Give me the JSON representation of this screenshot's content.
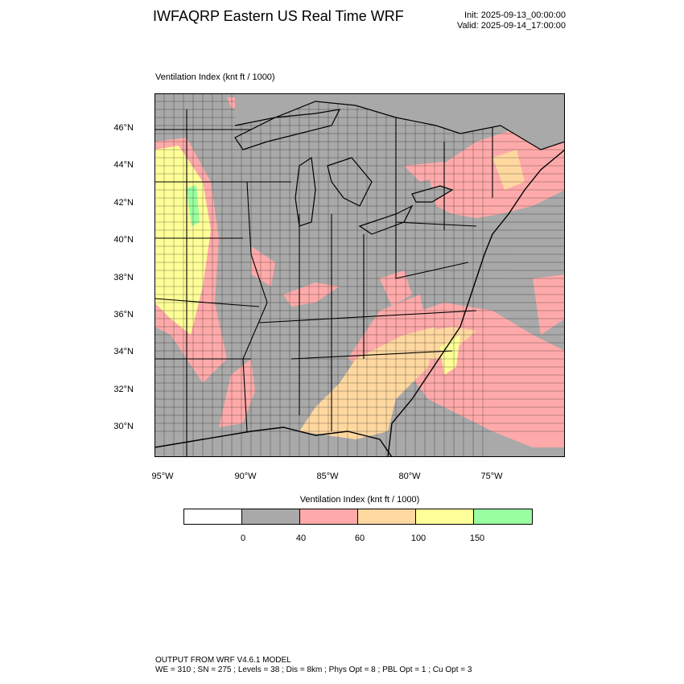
{
  "header": {
    "title": "IWFAQRP Eastern US Real Time WRF",
    "init": "Init: 2025-09-13_00:00:00",
    "valid": "Valid: 2025-09-14_17:00:00"
  },
  "map": {
    "field_label": "Ventilation Index   (knt ft / 1000)",
    "lat_labels": [
      "46°N",
      "44°N",
      "42°N",
      "40°N",
      "38°N",
      "36°N",
      "34°N",
      "32°N",
      "30°N"
    ],
    "lon_labels": [
      "95°W",
      "90°W",
      "85°W",
      "80°W",
      "75°W"
    ],
    "colors": {
      "land_low": "#a9a9a9",
      "band_40_60": "#ffaaaa",
      "band_60_100": "#ffd8a0",
      "band_100_150": "#ffff99",
      "band_150_plus": "#99ffa0",
      "water": "#a9a9a9",
      "boundaries": "#000000"
    }
  },
  "legend": {
    "title": "Ventilation Index  (knt ft / 1000)",
    "colors": [
      "#ffffff",
      "#a9a9a9",
      "#ffaaaa",
      "#ffd8a0",
      "#ffff99",
      "#99ffa0"
    ],
    "ticks": [
      "0",
      "40",
      "60",
      "100",
      "150"
    ]
  },
  "footer": {
    "line1": "OUTPUT FROM WRF V4.6.1 MODEL",
    "line2": "WE = 310 ; SN = 275 ; Levels = 38 ; Dis = 8km ; Phys Opt = 8 ; PBL Opt = 1 ; Cu Opt = 3"
  }
}
